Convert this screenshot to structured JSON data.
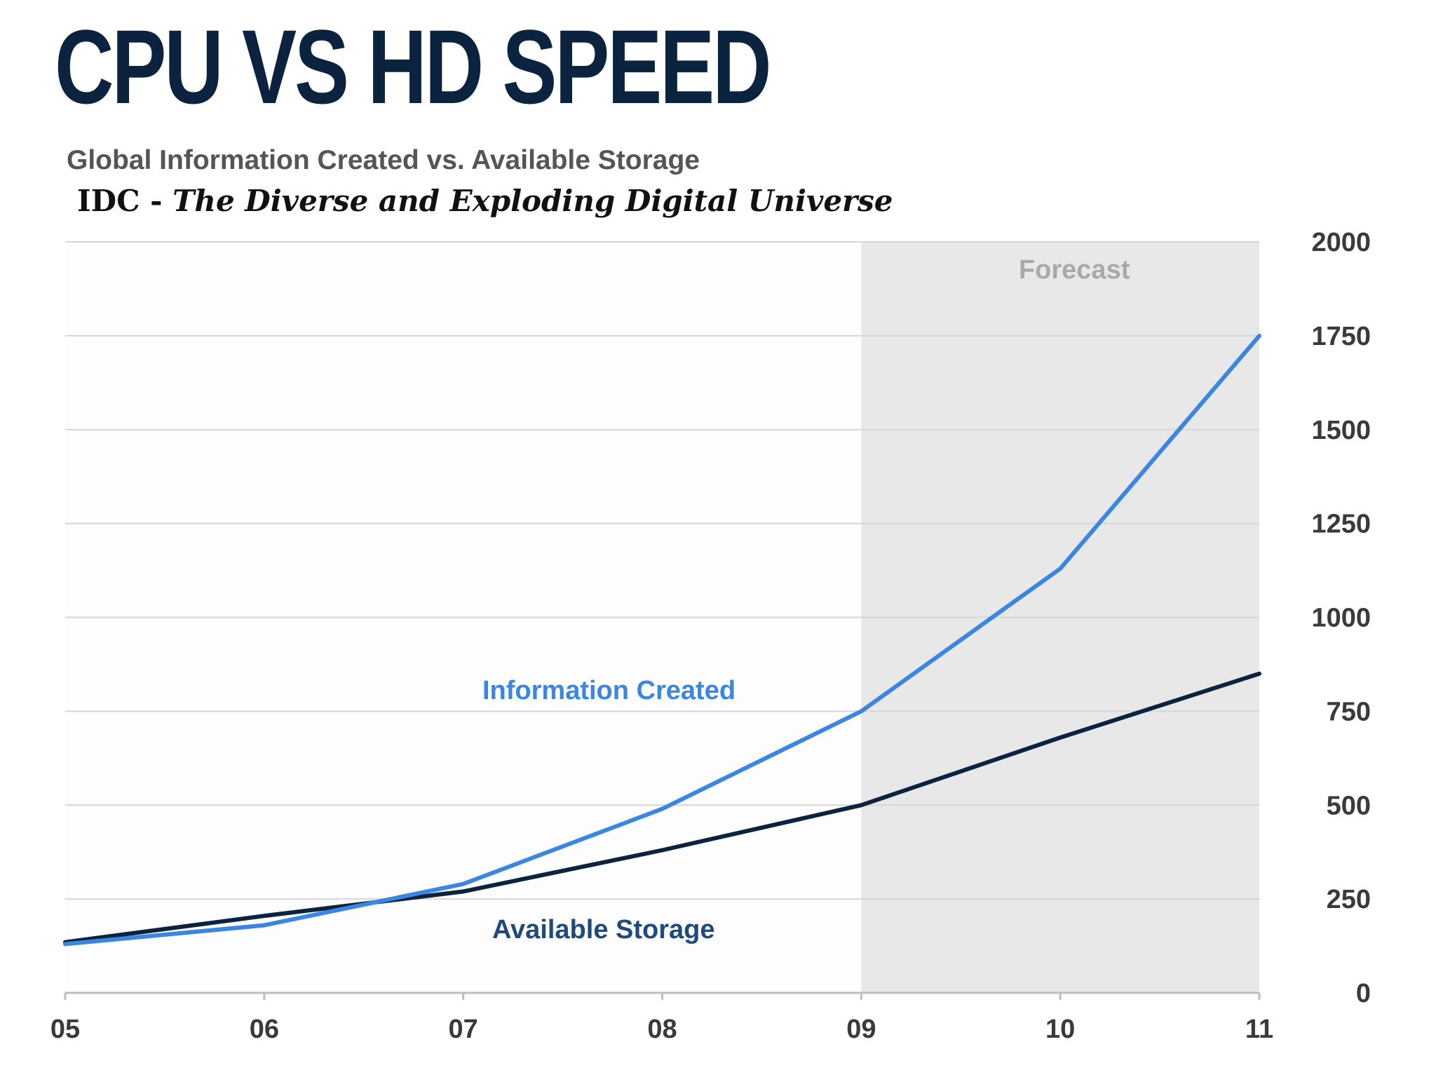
{
  "slide": {
    "title": "CPU VS HD SPEED"
  },
  "chart_data": {
    "type": "line",
    "title": "Global Information Created vs. Available Storage",
    "source_prefix": "IDC - ",
    "source_title": "The Diverse and Exploding Digital Universe",
    "x": [
      "05",
      "06",
      "07",
      "08",
      "09",
      "10",
      "11"
    ],
    "series": [
      {
        "name": "Information Created",
        "values": [
          130,
          180,
          290,
          490,
          750,
          1130,
          1750
        ],
        "color": "#3a86e0"
      },
      {
        "name": "Available Storage",
        "values": [
          135,
          205,
          270,
          380,
          500,
          680,
          850
        ],
        "color": "#0c2340"
      }
    ],
    "ylim": [
      0,
      2000
    ],
    "yticks": [
      "0",
      "250",
      "500",
      "750",
      "1000",
      "1250",
      "1500",
      "1750",
      "2000"
    ],
    "y_axis_side": "right",
    "grid": true,
    "forecast": {
      "label": "Forecast",
      "from": "09",
      "to": "11",
      "color": "#e8e8e8"
    },
    "xlabel": "",
    "ylabel": ""
  }
}
